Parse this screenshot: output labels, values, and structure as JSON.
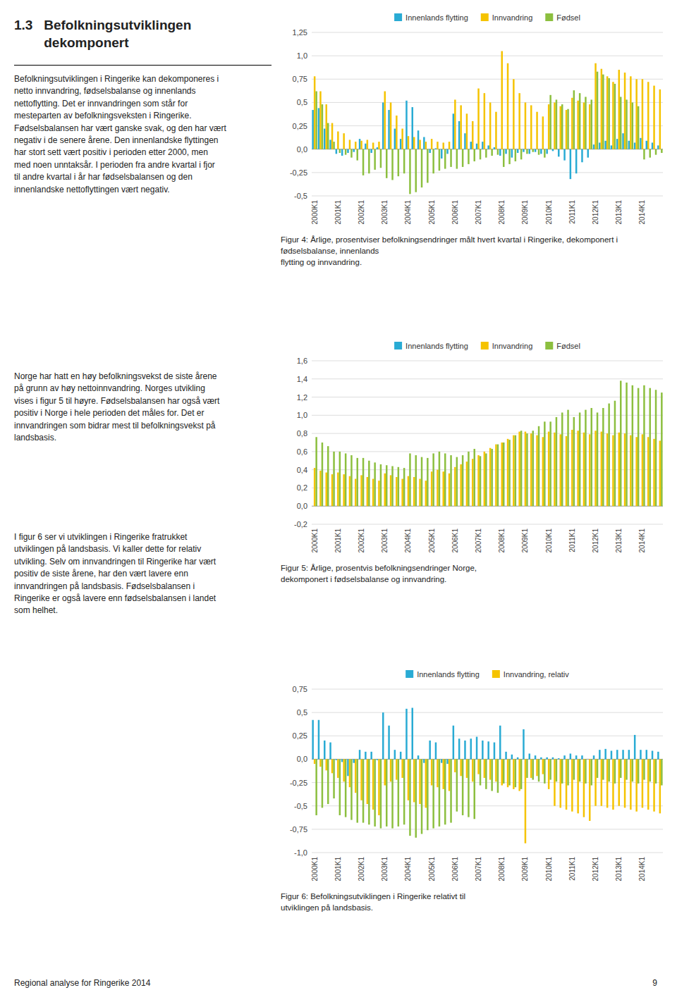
{
  "chart_data": [
    {
      "type": "bar",
      "title": "Figur 4: Årlige, prosentviser befolkningsendringer målt hvert kvartal i Ringerike, dekomponert i fødselsbalanse, innenlands\nflytting og innvandring.",
      "categories": [
        "2000K1",
        null,
        null,
        null,
        "2001K1",
        null,
        null,
        null,
        "2002K1",
        null,
        null,
        null,
        "2003K1",
        null,
        null,
        null,
        "2004K1",
        null,
        null,
        null,
        "2005K1",
        null,
        null,
        null,
        "2006K1",
        null,
        null,
        null,
        "2007K1",
        null,
        null,
        null,
        "2008K1",
        null,
        null,
        null,
        "2009K1",
        null,
        null,
        null,
        "2010K1",
        null,
        null,
        null,
        "2011K1",
        null,
        null,
        null,
        "2012K1",
        null,
        null,
        null,
        "2013K1",
        null,
        null,
        null,
        "2014K1",
        null,
        null,
        null
      ],
      "series": [
        {
          "name": "Innenlands flytting",
          "color": "#29ABD4",
          "values": [
            0.42,
            0.44,
            0.22,
            0.1,
            -0.05,
            -0.07,
            -0.04,
            -0.03,
            0.11,
            0.06,
            -0.04,
            0.02,
            0.5,
            0.42,
            0.22,
            0.11,
            0.52,
            0.45,
            0.2,
            0.13,
            -0.04,
            0.01,
            -0.1,
            -0.05,
            0.38,
            0.3,
            0.17,
            0.08,
            0.06,
            0.08,
            0.04,
            0.02,
            -0.07,
            -0.05,
            -0.09,
            -0.04,
            -0.03,
            -0.05,
            -0.03,
            -0.05,
            -0.05,
            -0.02,
            -0.08,
            -0.12,
            -0.32,
            -0.26,
            -0.14,
            -0.09,
            0.05,
            0.07,
            0.09,
            0.04,
            0.11,
            0.17,
            0.09,
            0.07,
            0.12,
            0.09,
            0.07,
            0.04
          ]
        },
        {
          "name": "Innvandring",
          "color": "#F5C300",
          "values": [
            0.78,
            0.62,
            0.48,
            0.28,
            0.19,
            0.17,
            0.1,
            0.08,
            0.09,
            0.1,
            0.07,
            0.08,
            0.62,
            0.5,
            0.36,
            0.22,
            0.14,
            0.13,
            0.1,
            0.08,
            0.11,
            0.08,
            0.07,
            0.08,
            0.53,
            0.47,
            0.38,
            0.3,
            0.65,
            0.6,
            0.5,
            0.4,
            1.05,
            0.92,
            0.75,
            0.6,
            0.5,
            0.47,
            0.4,
            0.35,
            0.48,
            0.5,
            0.46,
            0.42,
            0.55,
            0.52,
            0.5,
            0.48,
            0.92,
            0.86,
            0.78,
            0.72,
            0.85,
            0.82,
            0.78,
            0.75,
            0.75,
            0.72,
            0.68,
            0.64
          ]
        },
        {
          "name": "Fødsel",
          "color": "#8CBF3F",
          "values": [
            0.62,
            0.48,
            0.28,
            0.08,
            -0.04,
            -0.06,
            -0.09,
            -0.12,
            -0.28,
            -0.26,
            -0.22,
            -0.2,
            -0.31,
            -0.33,
            -0.29,
            -0.26,
            -0.48,
            -0.46,
            -0.41,
            -0.36,
            -0.26,
            -0.23,
            -0.21,
            -0.19,
            -0.21,
            -0.19,
            -0.16,
            -0.13,
            -0.11,
            -0.09,
            -0.07,
            -0.06,
            -0.19,
            -0.16,
            -0.13,
            -0.11,
            -0.05,
            -0.03,
            -0.06,
            -0.09,
            0.58,
            0.53,
            0.48,
            0.43,
            0.63,
            0.6,
            0.56,
            0.53,
            0.83,
            0.8,
            0.76,
            0.7,
            0.56,
            0.53,
            0.5,
            0.46,
            -0.11,
            -0.09,
            -0.06,
            -0.04
          ]
        }
      ],
      "ylim": [
        -0.5,
        1.25
      ],
      "yticks": [
        {
          "value": -0.5,
          "label": "-0,5"
        },
        {
          "value": -0.25,
          "label": "-0,25"
        },
        {
          "value": 0,
          "label": "0,0"
        },
        {
          "value": 0.25,
          "label": "0,25"
        },
        {
          "value": 0.5,
          "label": "0,5"
        },
        {
          "value": 0.75,
          "label": "0,75"
        },
        {
          "value": 1.0,
          "label": "1,0"
        },
        {
          "value": 1.25,
          "label": "1,25"
        }
      ],
      "grid": true,
      "legend": "top"
    },
    {
      "type": "bar",
      "title": "Figur 5: Årlige, prosentvis befolkningsendringer Norge,\ndekomponert i fødselsbalanse og innvandring.",
      "categories": [
        "2000K1",
        null,
        null,
        null,
        "2001K1",
        null,
        null,
        null,
        "2002K1",
        null,
        null,
        null,
        "2003K1",
        null,
        null,
        null,
        "2004K1",
        null,
        null,
        null,
        "2005K1",
        null,
        null,
        null,
        "2006K1",
        null,
        null,
        null,
        "2007K1",
        null,
        null,
        null,
        "2008K1",
        null,
        null,
        null,
        "2009K1",
        null,
        null,
        null,
        "2010K1",
        null,
        null,
        null,
        "2011K1",
        null,
        null,
        null,
        "2012K1",
        null,
        null,
        null,
        "2013K1",
        null,
        null,
        null,
        "2014K1",
        null,
        null,
        null
      ],
      "series": [
        {
          "name": "Innenlands flytting",
          "color": "#29ABD4",
          "values": [
            0,
            0,
            0,
            0,
            0,
            0,
            0,
            0,
            0,
            0,
            0,
            0,
            0,
            0,
            0,
            0,
            0,
            0,
            0,
            0,
            0,
            0,
            0,
            0,
            0,
            0,
            0,
            0,
            0,
            0,
            0,
            0,
            0,
            0,
            0,
            0,
            0,
            0,
            0,
            0,
            0,
            0,
            0,
            0,
            0,
            0,
            0,
            0,
            0,
            0,
            0,
            0,
            0,
            0,
            0,
            0,
            0,
            0,
            0,
            0
          ]
        },
        {
          "name": "Innvandring",
          "color": "#F5C300",
          "values": [
            0.42,
            0.39,
            0.37,
            0.35,
            0.37,
            0.35,
            0.33,
            0.3,
            0.34,
            0.32,
            0.3,
            0.28,
            0.36,
            0.34,
            0.32,
            0.3,
            0.33,
            0.32,
            0.3,
            0.28,
            0.38,
            0.4,
            0.38,
            0.36,
            0.43,
            0.46,
            0.49,
            0.52,
            0.56,
            0.6,
            0.64,
            0.68,
            0.7,
            0.74,
            0.78,
            0.82,
            0.82,
            0.8,
            0.78,
            0.76,
            0.82,
            0.81,
            0.79,
            0.77,
            0.84,
            0.83,
            0.81,
            0.79,
            0.83,
            0.82,
            0.8,
            0.78,
            0.81,
            0.8,
            0.78,
            0.76,
            0.79,
            0.76,
            0.74,
            0.72
          ]
        },
        {
          "name": "Fødsel",
          "color": "#8CBF3F",
          "values": [
            0.76,
            0.7,
            0.66,
            0.6,
            0.6,
            0.58,
            0.56,
            0.53,
            0.53,
            0.5,
            0.48,
            0.46,
            0.45,
            0.44,
            0.43,
            0.42,
            0.58,
            0.56,
            0.54,
            0.53,
            0.58,
            0.6,
            0.58,
            0.56,
            0.54,
            0.56,
            0.6,
            0.63,
            0.55,
            0.58,
            0.63,
            0.68,
            0.7,
            0.73,
            0.78,
            0.83,
            0.8,
            0.83,
            0.88,
            0.93,
            0.93,
            0.98,
            1.03,
            1.06,
            0.98,
            1.03,
            1.06,
            1.08,
            1.03,
            1.08,
            1.13,
            1.16,
            1.38,
            1.36,
            1.33,
            1.3,
            1.33,
            1.3,
            1.28,
            1.25
          ]
        }
      ],
      "ylim": [
        -0.2,
        1.6
      ],
      "yticks": [
        {
          "value": -0.2,
          "label": "-0,2"
        },
        {
          "value": 0,
          "label": "0,0"
        },
        {
          "value": 0.2,
          "label": "0,2"
        },
        {
          "value": 0.4,
          "label": "0,4"
        },
        {
          "value": 0.6,
          "label": "0,6"
        },
        {
          "value": 0.8,
          "label": "0,8"
        },
        {
          "value": 1.0,
          "label": "1,0"
        },
        {
          "value": 1.2,
          "label": "1,2"
        },
        {
          "value": 1.4,
          "label": "1,4"
        },
        {
          "value": 1.6,
          "label": "1,6"
        }
      ],
      "grid": true,
      "legend": "top"
    },
    {
      "type": "bar",
      "title": "Figur 6: Befolkningsutviklingen i Ringerike relativt til\nutviklingen på landsbasis.",
      "categories": [
        "2000K1",
        null,
        null,
        null,
        "2001K1",
        null,
        null,
        null,
        "2002K1",
        null,
        null,
        null,
        "2003K1",
        null,
        null,
        null,
        "2004K1",
        null,
        null,
        null,
        "2005K1",
        null,
        null,
        null,
        "2006K1",
        null,
        null,
        null,
        "2007K1",
        null,
        null,
        null,
        "2008K1",
        null,
        null,
        null,
        "2009K1",
        null,
        null,
        null,
        "2010K1",
        null,
        null,
        null,
        "2011K1",
        null,
        null,
        null,
        "2012K1",
        null,
        null,
        null,
        "2013K1",
        null,
        null,
        null,
        "2014K1",
        null,
        null,
        null
      ],
      "series": [
        {
          "name": "Innenlands flytting",
          "color": "#29ABD4",
          "values": [
            0.42,
            0.42,
            0.2,
            0.18,
            -0.01,
            -0.03,
            -0.18,
            -0.04,
            0.1,
            0.08,
            0.08,
            -0.01,
            0.5,
            0.36,
            0.1,
            0.08,
            0.54,
            0.55,
            0.04,
            -0.04,
            0.2,
            0.18,
            -0.04,
            -0.05,
            0.36,
            0.22,
            0.2,
            0.22,
            0.24,
            0.2,
            0.19,
            0.18,
            0.36,
            0.08,
            0.05,
            0.02,
            0.32,
            0.06,
            0.04,
            0.02,
            0.02,
            0.02,
            0.01,
            0.04,
            0.06,
            0.04,
            0.04,
            0.0,
            0.04,
            0.1,
            0.11,
            0.09,
            0.1,
            0.1,
            0.1,
            0.26,
            0.1,
            0.1,
            0.09,
            0.08
          ]
        },
        {
          "name": "Innvandring, relativ",
          "color": "#F5C300",
          "values": [
            -0.05,
            -0.08,
            -0.12,
            -0.15,
            -0.2,
            -0.24,
            -0.3,
            -0.36,
            -0.44,
            -0.48,
            -0.54,
            -0.6,
            -0.28,
            -0.24,
            -0.22,
            -0.2,
            -0.44,
            -0.46,
            -0.48,
            -0.52,
            -0.28,
            -0.3,
            -0.32,
            -0.34,
            -0.14,
            -0.18,
            -0.2,
            -0.24,
            -0.16,
            -0.2,
            -0.22,
            -0.24,
            -0.28,
            -0.3,
            -0.32,
            -0.34,
            -0.9,
            -0.2,
            -0.18,
            -0.16,
            -0.32,
            -0.5,
            -0.52,
            -0.54,
            -0.56,
            -0.58,
            -0.62,
            -0.66,
            -0.5,
            -0.5,
            -0.52,
            -0.54,
            -0.5,
            -0.52,
            -0.54,
            -0.56,
            -0.52,
            -0.54,
            -0.56,
            -0.58
          ]
        },
        {
          "color": "#8CBF3F",
          "values": [
            -0.6,
            -0.52,
            -0.48,
            -0.42,
            -0.6,
            -0.62,
            -0.65,
            -0.68,
            -0.68,
            -0.7,
            -0.72,
            -0.74,
            -0.72,
            -0.74,
            -0.72,
            -0.7,
            -0.82,
            -0.84,
            -0.8,
            -0.76,
            -0.74,
            -0.72,
            -0.7,
            -0.68,
            -0.56,
            -0.6,
            -0.62,
            -0.64,
            -0.28,
            -0.32,
            -0.34,
            -0.36,
            -0.26,
            -0.28,
            -0.3,
            -0.32,
            -0.2,
            -0.22,
            -0.24,
            -0.26,
            -0.22,
            -0.24,
            -0.26,
            -0.28,
            -0.22,
            -0.24,
            -0.26,
            -0.28,
            -0.2,
            -0.22,
            -0.24,
            -0.26,
            -0.2,
            -0.22,
            -0.24,
            -0.26,
            -0.22,
            -0.24,
            -0.26,
            -0.28
          ]
        }
      ],
      "ylim": [
        -1.0,
        0.75
      ],
      "yticks": [
        {
          "value": -1.0,
          "label": "-1,0"
        },
        {
          "value": -0.75,
          "label": "-0,75"
        },
        {
          "value": -0.5,
          "label": "-0,5"
        },
        {
          "value": -0.25,
          "label": "-0,25"
        },
        {
          "value": 0,
          "label": "0,0"
        },
        {
          "value": 0.25,
          "label": "0,25"
        },
        {
          "value": 0.5,
          "label": "0,5"
        },
        {
          "value": 0.75,
          "label": "0,75"
        }
      ],
      "grid": true,
      "legend": "top"
    }
  ],
  "page_text": {
    "title": [
      "1.3   Befolkningsutviklingen",
      "        dekomponert"
    ],
    "body": [
      "Befolkningsutviklingen i Ringerike kan dekomponeres i\nnetto innvandring, fødselsbalanse og innenlands\nnettoflytting. Det er innvandringen som står for\nmesteparten av befolkningsveksten i Ringerike.\nFødselsbalansen har vært ganske svak, og den har vært\nnegativ i de senere årene. Den innenlandske flyttingen\nhar stort sett vært positiv i perioden etter 2000, men\nmed noen unntaksår. I perioden fra andre kvartal i fjor\ntil andre kvartal i år har fødselsbalansen og den\ninnenlandske nettoflyttingen vært negativ.",
      "Norge har hatt en høy befolkningsvekst de siste årene\npå grunn av høy nettoinnvandring. Norges utvikling\nvises i figur 5 til høyre. Fødselsbalansen har også vært\npositiv i Norge i hele perioden det måles for. Det er\ninnvandringen som bidrar mest til befolkningsvekst på\nlandsbasis.",
      "I figur 6 ser vi utviklingen i Ringerike fratrukket\nutviklingen på landsbasis. Vi kaller dette for relativ\nutvikling. Selv om innvandringen til Ringerike har vært\npositiv de siste årene, har den vært lavere enn\ninnvandringen på landsbasis. Fødselsbalansen i\nRingerike er også lavere enn fødselsbalansen i landet\nsom helhet."
    ],
    "footer": "Regional analyse for Ringerike 2014",
    "page_number": "9"
  }
}
